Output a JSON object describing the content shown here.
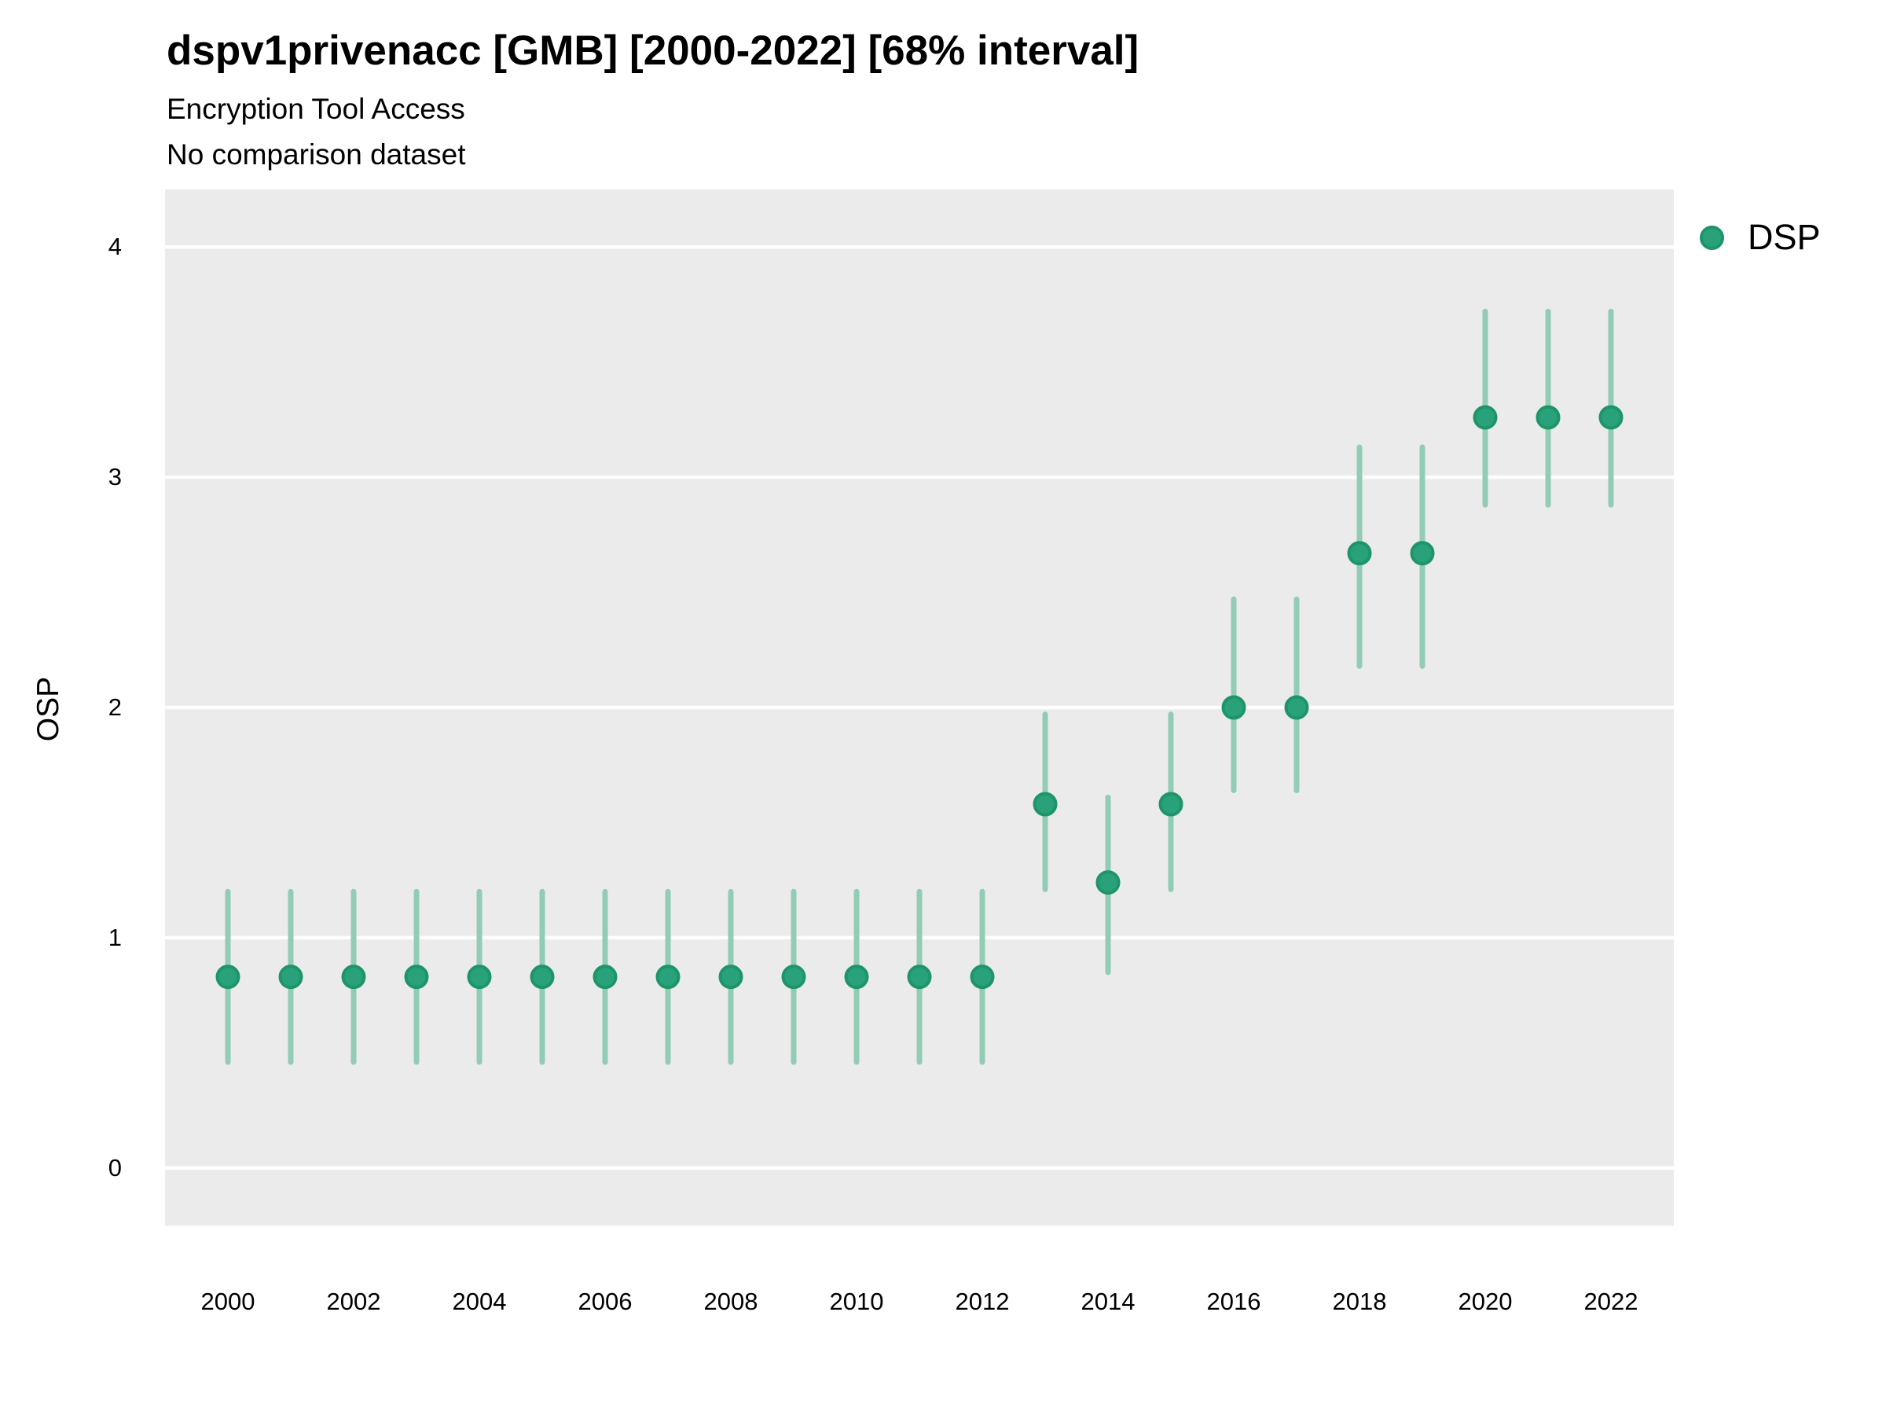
{
  "chart_data": {
    "type": "scatter",
    "title": "dspv1privenacc [GMB] [2000-2022] [68% interval]",
    "subtitle_line1": "Encryption Tool Access",
    "subtitle_line2": "No comparison dataset",
    "xlabel": "",
    "ylabel": "OSP",
    "interval_label": "68% interval",
    "x": [
      2000,
      2001,
      2002,
      2003,
      2004,
      2005,
      2006,
      2007,
      2008,
      2009,
      2010,
      2011,
      2012,
      2013,
      2014,
      2015,
      2016,
      2017,
      2018,
      2019,
      2020,
      2021,
      2022
    ],
    "series": [
      {
        "name": "DSP",
        "values": [
          0.83,
          0.83,
          0.83,
          0.83,
          0.83,
          0.83,
          0.83,
          0.83,
          0.83,
          0.83,
          0.83,
          0.83,
          0.83,
          1.58,
          1.24,
          1.58,
          2.0,
          2.0,
          2.67,
          2.67,
          3.26,
          3.26,
          3.26
        ],
        "interval_low": [
          0.46,
          0.46,
          0.46,
          0.46,
          0.46,
          0.46,
          0.46,
          0.46,
          0.46,
          0.46,
          0.46,
          0.46,
          0.46,
          1.21,
          0.85,
          1.21,
          1.64,
          1.64,
          2.18,
          2.18,
          2.88,
          2.88,
          2.88
        ],
        "interval_high": [
          1.2,
          1.2,
          1.2,
          1.2,
          1.2,
          1.2,
          1.2,
          1.2,
          1.2,
          1.2,
          1.2,
          1.2,
          1.2,
          1.97,
          1.61,
          1.97,
          2.47,
          2.47,
          3.13,
          3.13,
          3.72,
          3.72,
          3.72
        ]
      }
    ],
    "xlim": [
      1999,
      2023
    ],
    "ylim": [
      -0.25,
      4.25
    ],
    "x_ticks": [
      2000,
      2002,
      2004,
      2006,
      2008,
      2010,
      2012,
      2014,
      2016,
      2018,
      2020,
      2022
    ],
    "y_ticks": [
      0,
      1,
      2,
      3,
      4
    ],
    "grid": "horizontal-major-only",
    "legend_position": "right-top",
    "colors": {
      "point": "#29A27B",
      "point_border": "#1E9569",
      "interval_bar": "#92CCB4",
      "panel_bg": "#EBEBEB",
      "grid": "#FFFFFF",
      "text": "#000000"
    }
  }
}
